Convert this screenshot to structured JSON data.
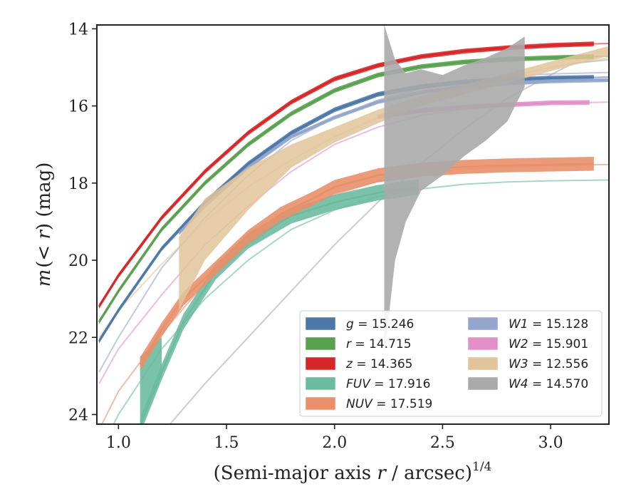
{
  "chart_data": {
    "type": "line",
    "xlabel_prefix": "(Semi-major axis ",
    "xlabel_var": "r",
    "xlabel_suffix": " / arcsec)",
    "xlabel_exp": "1/4",
    "ylabel_m": "m",
    "ylabel_rest": "(< ",
    "ylabel_r": "r",
    "ylabel_close": ") (mag)",
    "xlim": [
      0.9,
      3.27
    ],
    "ylim": [
      24.25,
      13.9
    ],
    "y_inverted": true,
    "xticks": [
      1.0,
      1.5,
      2.0,
      2.5,
      3.0
    ],
    "xtick_labels": [
      "1.0",
      "1.5",
      "2.0",
      "2.5",
      "3.0"
    ],
    "yticks": [
      14,
      16,
      18,
      20,
      22,
      24
    ],
    "ytick_labels": [
      "14",
      "16",
      "18",
      "20",
      "22",
      "24"
    ],
    "grid": false,
    "legend_placement": "lower-right",
    "series": [
      {
        "name": "g",
        "total": "15.246",
        "color": "#4c78a8",
        "measured": [
          [
            0.91,
            22.1
          ],
          [
            1.0,
            21.3
          ],
          [
            1.2,
            19.7
          ],
          [
            1.4,
            18.5
          ],
          [
            1.6,
            17.5
          ],
          [
            1.8,
            16.7
          ],
          [
            2.0,
            16.1
          ],
          [
            2.2,
            15.7
          ],
          [
            2.4,
            15.5
          ],
          [
            2.6,
            15.38
          ],
          [
            2.8,
            15.32
          ],
          [
            3.0,
            15.28
          ],
          [
            3.2,
            15.26
          ]
        ],
        "band": 0.06,
        "model": [
          [
            3.2,
            15.26
          ],
          [
            3.27,
            15.25
          ]
        ]
      },
      {
        "name": "r",
        "total": "14.715",
        "color": "#59a14f",
        "measured": [
          [
            0.91,
            21.6
          ],
          [
            1.0,
            20.8
          ],
          [
            1.2,
            19.2
          ],
          [
            1.4,
            18.0
          ],
          [
            1.6,
            17.0
          ],
          [
            1.8,
            16.2
          ],
          [
            2.0,
            15.6
          ],
          [
            2.2,
            15.2
          ],
          [
            2.4,
            14.98
          ],
          [
            2.6,
            14.86
          ],
          [
            2.8,
            14.79
          ],
          [
            3.0,
            14.75
          ],
          [
            3.2,
            14.72
          ]
        ],
        "band": 0.06,
        "model": [
          [
            3.2,
            14.72
          ],
          [
            3.27,
            14.71
          ]
        ]
      },
      {
        "name": "z",
        "total": "14.365",
        "color": "#d62728",
        "measured": [
          [
            0.91,
            21.2
          ],
          [
            1.0,
            20.4
          ],
          [
            1.2,
            18.9
          ],
          [
            1.4,
            17.7
          ],
          [
            1.6,
            16.7
          ],
          [
            1.8,
            15.9
          ],
          [
            2.0,
            15.3
          ],
          [
            2.2,
            14.95
          ],
          [
            2.4,
            14.72
          ],
          [
            2.6,
            14.58
          ],
          [
            2.8,
            14.49
          ],
          [
            3.0,
            14.43
          ],
          [
            3.2,
            14.39
          ]
        ],
        "band": 0.06,
        "model": [
          [
            3.2,
            14.39
          ],
          [
            3.27,
            14.38
          ]
        ]
      },
      {
        "name": "FUV",
        "total": "17.916",
        "color": "#6cbba0",
        "measured": [
          [
            1.1,
            24.3
          ],
          [
            1.2,
            22.9
          ],
          [
            1.3,
            21.6
          ],
          [
            1.45,
            20.3
          ],
          [
            1.6,
            19.5
          ],
          [
            1.8,
            18.85
          ],
          [
            2.0,
            18.5
          ],
          [
            2.2,
            18.25
          ],
          [
            2.39,
            18.1
          ]
        ],
        "band": 0.2,
        "band_wide": [
          [
            1.1,
            24.3,
            22.5
          ],
          [
            1.2,
            23.0,
            22.0
          ]
        ],
        "model": [
          [
            0.91,
            25.0
          ],
          [
            1.0,
            24.0
          ],
          [
            1.2,
            22.3
          ],
          [
            1.4,
            21.0
          ],
          [
            1.6,
            20.0
          ],
          [
            1.8,
            19.2
          ],
          [
            2.0,
            18.7
          ],
          [
            2.2,
            18.35
          ],
          [
            2.4,
            18.15
          ],
          [
            2.6,
            18.03
          ],
          [
            2.8,
            17.97
          ],
          [
            3.0,
            17.94
          ],
          [
            3.27,
            17.92
          ]
        ]
      },
      {
        "name": "NUV",
        "total": "17.519",
        "color": "#e8906a",
        "measured": [
          [
            1.1,
            22.7
          ],
          [
            1.2,
            21.8
          ],
          [
            1.3,
            21.0
          ],
          [
            1.45,
            20.2
          ],
          [
            1.6,
            19.4
          ],
          [
            1.75,
            18.8
          ],
          [
            1.9,
            18.4
          ],
          [
            2.0,
            18.1
          ],
          [
            2.2,
            17.8
          ],
          [
            2.4,
            17.65
          ],
          [
            2.6,
            17.58
          ],
          [
            2.8,
            17.54
          ],
          [
            3.0,
            17.52
          ],
          [
            3.2,
            17.5
          ]
        ],
        "band": 0.18,
        "model": [
          [
            0.91,
            24.4
          ],
          [
            1.0,
            23.4
          ],
          [
            1.2,
            21.9
          ],
          [
            1.4,
            20.6
          ],
          [
            1.6,
            19.6
          ],
          [
            1.8,
            18.8
          ],
          [
            2.0,
            18.3
          ],
          [
            2.2,
            17.95
          ],
          [
            2.4,
            17.75
          ],
          [
            2.6,
            17.64
          ],
          [
            2.8,
            17.58
          ],
          [
            3.0,
            17.54
          ],
          [
            3.27,
            17.52
          ]
        ]
      },
      {
        "name": "W1",
        "total": "15.128",
        "color": "#94a6cd",
        "measured": [
          [
            1.28,
            19.3
          ],
          [
            1.4,
            18.6
          ],
          [
            1.6,
            17.6
          ],
          [
            1.8,
            16.8
          ],
          [
            2.0,
            16.3
          ],
          [
            2.2,
            15.9
          ],
          [
            2.4,
            15.65
          ],
          [
            2.6,
            15.5
          ],
          [
            2.8,
            15.42
          ],
          [
            3.0,
            15.36
          ],
          [
            3.27,
            15.33
          ]
        ],
        "band": 0.05,
        "model": [
          [
            0.91,
            22.9
          ],
          [
            1.0,
            22.0
          ],
          [
            1.2,
            20.2
          ],
          [
            1.4,
            18.9
          ],
          [
            1.6,
            17.8
          ],
          [
            1.8,
            16.9
          ],
          [
            2.0,
            16.3
          ],
          [
            2.2,
            15.85
          ],
          [
            2.4,
            15.55
          ],
          [
            2.6,
            15.35
          ],
          [
            2.8,
            15.23
          ],
          [
            3.0,
            15.17
          ],
          [
            3.27,
            15.13
          ]
        ]
      },
      {
        "name": "W2",
        "total": "15.901",
        "color": "#e290c8",
        "measured": [
          [
            2.2,
            16.28
          ],
          [
            2.4,
            16.12
          ],
          [
            2.6,
            16.03
          ],
          [
            2.8,
            15.97
          ],
          [
            3.0,
            15.92
          ],
          [
            3.18,
            15.91
          ]
        ],
        "band": 0.06,
        "model": [
          [
            0.91,
            23.2
          ],
          [
            1.0,
            22.3
          ],
          [
            1.2,
            20.9
          ],
          [
            1.4,
            19.6
          ],
          [
            1.6,
            18.6
          ],
          [
            1.8,
            17.7
          ],
          [
            2.0,
            17.0
          ],
          [
            2.2,
            16.55
          ],
          [
            2.4,
            16.25
          ],
          [
            2.6,
            16.08
          ],
          [
            2.8,
            15.98
          ],
          [
            3.0,
            15.93
          ],
          [
            3.27,
            15.9
          ]
        ]
      },
      {
        "name": "W3",
        "total": "12.556",
        "color": "#e2c49a",
        "measured_band": [
          [
            1.28,
            19.4,
            21.3
          ],
          [
            1.4,
            18.4,
            20.0
          ],
          [
            1.6,
            17.6,
            18.7
          ],
          [
            1.8,
            17.0,
            17.6
          ],
          [
            2.0,
            16.55,
            16.95
          ],
          [
            2.2,
            16.1,
            16.45
          ],
          [
            2.4,
            15.75,
            16.0
          ],
          [
            2.6,
            15.45,
            15.7
          ],
          [
            2.8,
            15.15,
            15.4
          ],
          [
            3.0,
            14.85,
            15.1
          ],
          [
            3.2,
            14.55,
            14.8
          ],
          [
            3.27,
            14.45,
            14.7
          ]
        ],
        "model": [
          [
            0.91,
            22.0
          ],
          [
            1.0,
            21.3
          ],
          [
            1.2,
            20.1
          ],
          [
            1.4,
            19.0
          ],
          [
            1.6,
            18.1
          ],
          [
            1.8,
            17.4
          ],
          [
            2.0,
            16.8
          ],
          [
            2.2,
            16.3
          ],
          [
            2.4,
            15.9
          ],
          [
            2.6,
            15.55
          ],
          [
            2.8,
            15.25
          ],
          [
            3.0,
            15.0
          ],
          [
            3.27,
            14.75
          ]
        ]
      },
      {
        "name": "W4",
        "total": "14.570",
        "color": "#aaaaaa",
        "measured_band": [
          [
            2.23,
            13.9,
            22.5
          ],
          [
            2.28,
            14.8,
            20.0
          ],
          [
            2.33,
            15.15,
            19.0
          ],
          [
            2.4,
            15.05,
            18.2
          ],
          [
            2.5,
            15.2,
            17.8
          ],
          [
            2.6,
            14.95,
            17.3
          ],
          [
            2.7,
            14.75,
            16.9
          ],
          [
            2.8,
            14.5,
            16.4
          ],
          [
            2.88,
            14.2,
            15.5
          ]
        ],
        "model": [
          [
            1.2,
            24.5
          ],
          [
            1.4,
            23.2
          ],
          [
            1.6,
            22.0
          ],
          [
            1.8,
            20.8
          ],
          [
            2.0,
            19.6
          ],
          [
            2.2,
            18.5
          ],
          [
            2.4,
            17.5
          ],
          [
            2.6,
            16.6
          ],
          [
            2.8,
            15.8
          ],
          [
            3.0,
            15.2
          ],
          [
            3.1,
            14.9
          ],
          [
            3.27,
            14.8
          ]
        ]
      }
    ]
  }
}
